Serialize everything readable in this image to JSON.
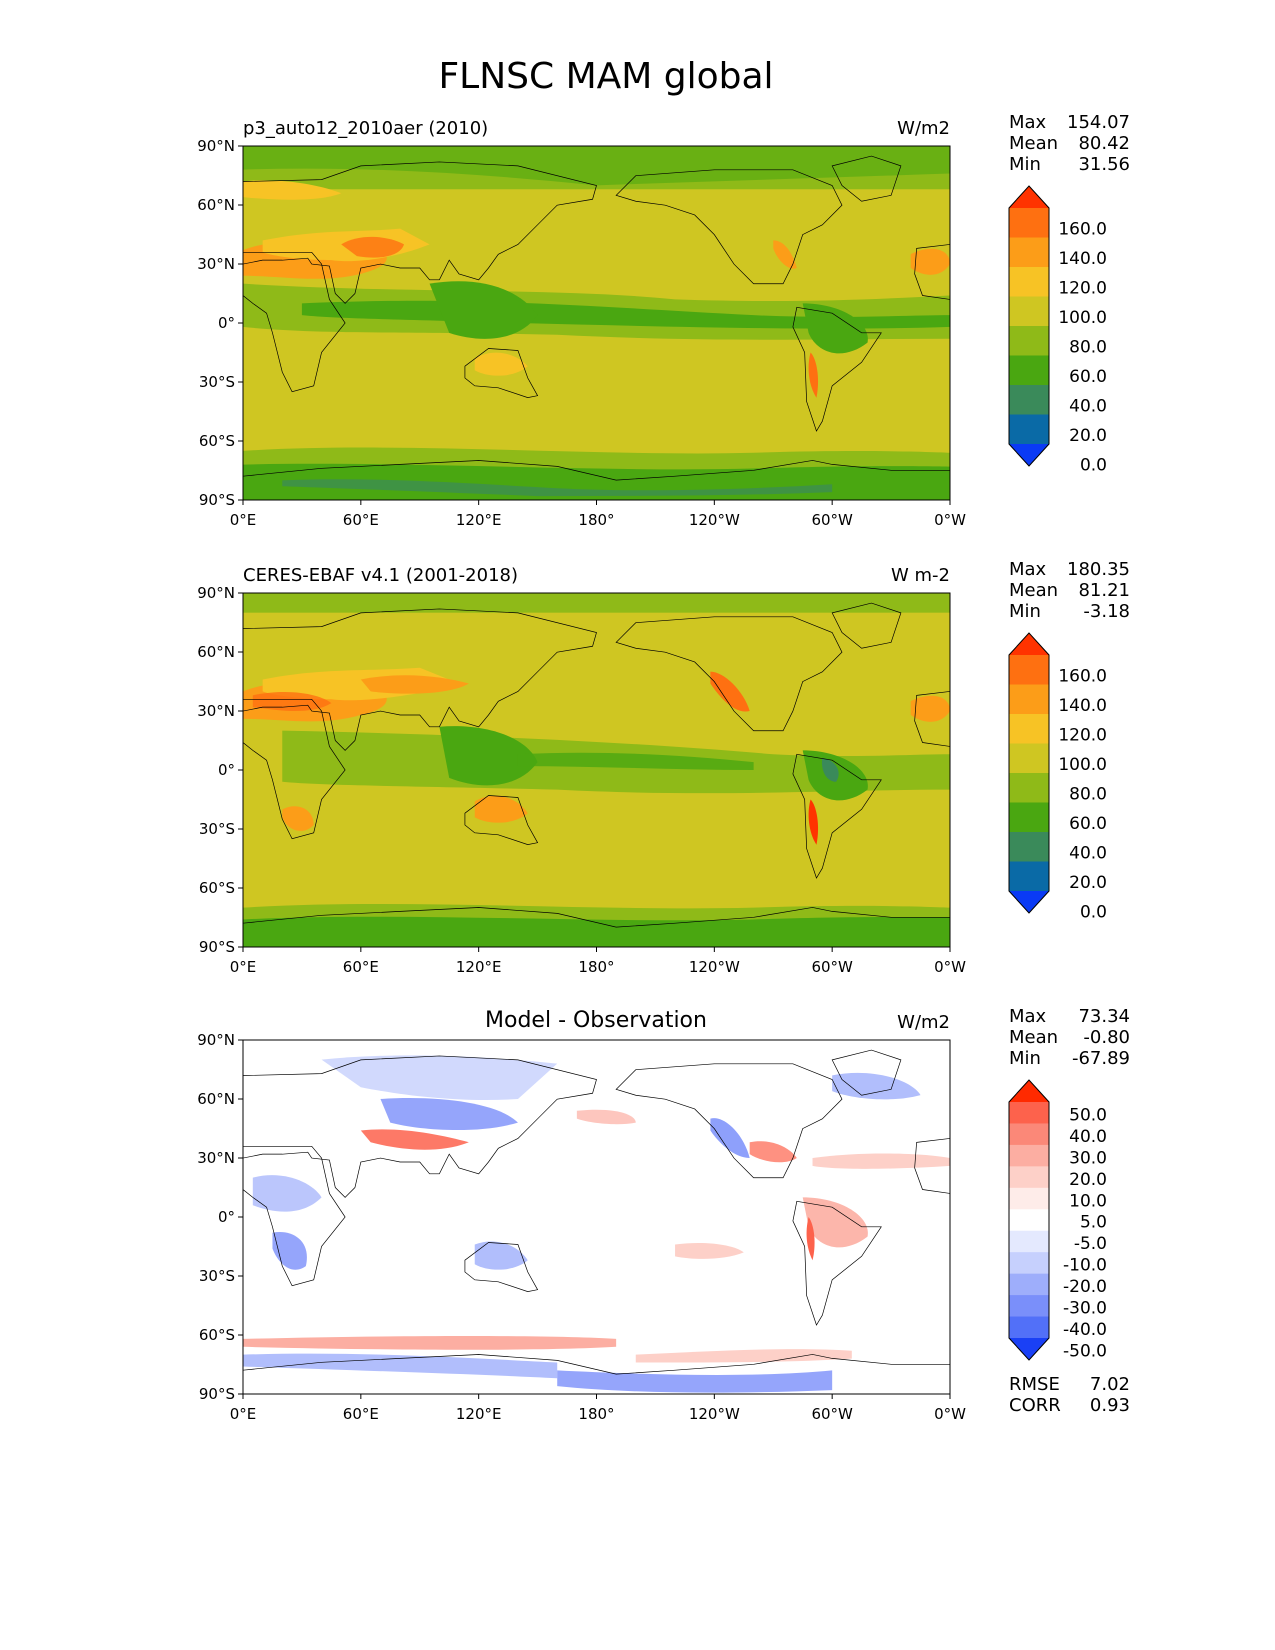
{
  "title": "FLNSC MAM global",
  "lon_ticks": [
    "0°E",
    "60°E",
    "120°E",
    "180°",
    "120°W",
    "60°W",
    "0°W"
  ],
  "lat_ticks": [
    "90°N",
    "60°N",
    "30°N",
    "0°",
    "30°S",
    "60°S",
    "90°S"
  ],
  "panels": [
    {
      "left_title": "p3_auto12_2010aer (2010)",
      "center_title": "",
      "units": "W/m2",
      "stats": [
        {
          "label": "Max",
          "value": "154.07"
        },
        {
          "label": "Mean",
          "value": "80.42"
        },
        {
          "label": "Min",
          "value": "31.56"
        }
      ],
      "bottom_stats": []
    },
    {
      "left_title": "CERES-EBAF v4.1 (2001-2018)",
      "center_title": "",
      "units": "W m-2",
      "stats": [
        {
          "label": "Max",
          "value": "180.35"
        },
        {
          "label": "Mean",
          "value": "81.21"
        },
        {
          "label": "Min",
          "value": "-3.18"
        }
      ],
      "bottom_stats": []
    },
    {
      "left_title": "",
      "center_title": "Model - Observation",
      "units": "W/m2",
      "stats": [
        {
          "label": "Max",
          "value": "73.34"
        },
        {
          "label": "Mean",
          "value": "-0.80"
        },
        {
          "label": "Min",
          "value": "-67.89"
        }
      ],
      "bottom_stats": [
        {
          "label": "RMSE",
          "value": "7.02"
        },
        {
          "label": "CORR",
          "value": "0.93"
        }
      ]
    }
  ],
  "colorbars": {
    "main": {
      "labels": [
        "160.0",
        "140.0",
        "120.0",
        "100.0",
        "80.0",
        "60.0",
        "40.0",
        "20.0",
        "0.0"
      ],
      "colors": [
        "#ff3300",
        "#fe7011",
        "#fc9d18",
        "#f7c325",
        "#cfc622",
        "#8fba18",
        "#4aa711",
        "#3a8a5a",
        "#0a6aa6",
        "#0a3af5"
      ]
    },
    "diff": {
      "labels": [
        "50.0",
        "40.0",
        "30.0",
        "20.0",
        "10.0",
        "5.0",
        "-5.0",
        "-10.0",
        "-20.0",
        "-30.0",
        "-40.0",
        "-50.0"
      ],
      "colors": [
        "#ff2a00",
        "#fd624c",
        "#fb8878",
        "#fcaea2",
        "#fdd0c8",
        "#feece9",
        "#ffffff",
        "#e4e9fe",
        "#c6d0fd",
        "#9eaefb",
        "#7a8ffa",
        "#5270f8",
        "#1a40f5"
      ]
    }
  }
}
